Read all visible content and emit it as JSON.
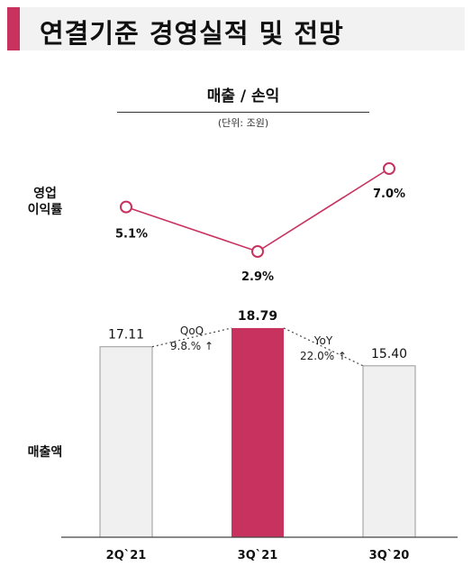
{
  "page": {
    "title": "연결기준 경영실적 및 전망"
  },
  "chart_data": [
    {
      "type": "line",
      "title": "매출 / 손익",
      "subtitle": "(단위: 조원)",
      "row_label": [
        "영업",
        "이익률"
      ],
      "categories": [
        "2Q`21",
        "3Q`21",
        "3Q`20"
      ],
      "series": [
        {
          "values": [
            5.1,
            2.9,
            7.0
          ],
          "labels": [
            "5.1%",
            "2.9%",
            "7.0%"
          ]
        }
      ],
      "ylim": [
        0,
        10
      ],
      "grid": false,
      "legend": "none",
      "color": "#c8325f"
    },
    {
      "type": "bar",
      "row_label": [
        "매출액"
      ],
      "categories": [
        "2Q`21",
        "3Q`21",
        "3Q`20"
      ],
      "values": [
        17.11,
        18.79,
        15.4
      ],
      "labels": [
        "17.11",
        "18.79",
        "15.40"
      ],
      "highlight_index": 1,
      "ylim": [
        0,
        20
      ],
      "grid": false,
      "legend": "none",
      "annotations": [
        {
          "text": [
            "QoQ",
            "9.8.% ↑"
          ],
          "from": 0,
          "to": 1
        },
        {
          "text": [
            "YoY",
            "22.0% ↑"
          ],
          "from": 1,
          "to": 2
        }
      ],
      "colors": {
        "highlight": "#c8325f",
        "default": "#f0f0f0",
        "border": "#999999"
      }
    }
  ]
}
